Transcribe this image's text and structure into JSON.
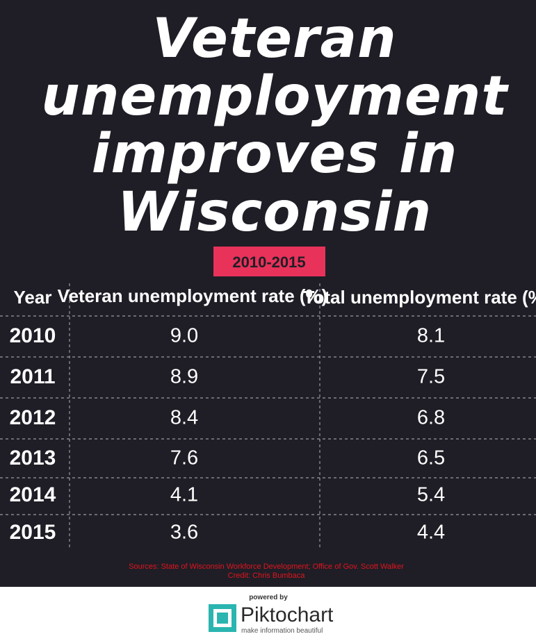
{
  "header": {
    "title_lines": [
      "Veteran",
      "unemployment",
      "improves in",
      "Wisconsin"
    ],
    "subtitle": "2010-2015"
  },
  "table": {
    "columns": [
      "Year",
      "Veteran unemployment rate (%)",
      "Total unemployment rate (%)"
    ],
    "rows": [
      [
        "2010",
        "9.0",
        "8.1"
      ],
      [
        "2011",
        "8.9",
        "7.5"
      ],
      [
        "2012",
        "8.4",
        "6.8"
      ],
      [
        "2013",
        "7.6",
        "6.5"
      ],
      [
        "2014",
        "4.1",
        "5.4"
      ],
      [
        "2015",
        "3.6",
        "4.4"
      ]
    ]
  },
  "sources": [
    "Sources: State of Wisconsin Workforce Development; Office of Gov. Scott Walker",
    "Credit: Chris Bumbaca"
  ],
  "footer": {
    "powered_by": "powered by",
    "brand": "Piktochart",
    "tagline": "make information beautiful"
  }
}
